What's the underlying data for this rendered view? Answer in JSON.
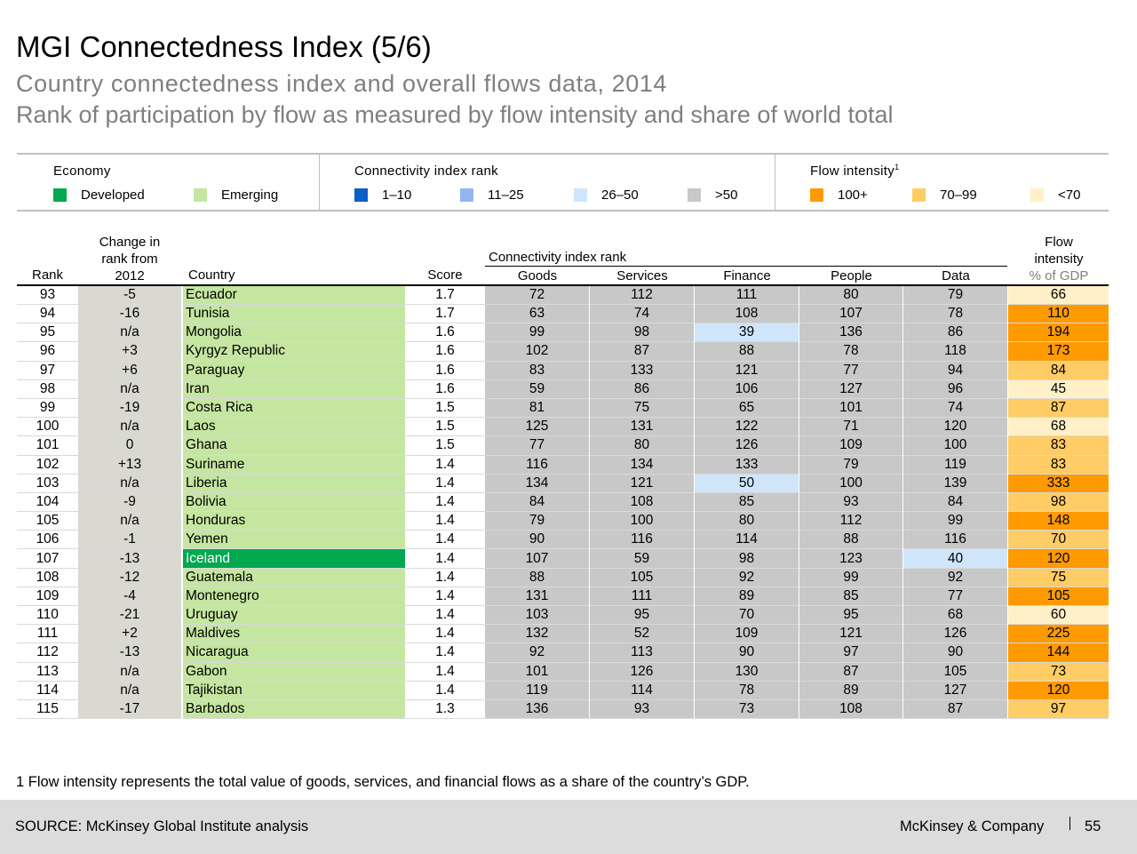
{
  "title": "MGI Connectedness Index (5/6)",
  "subtitle": "Country connectedness index and overall flows data, 2014",
  "subtitle2": "Rank of participation by flow as measured by flow intensity and share of world total",
  "legend": {
    "economy": {
      "title": "Economy",
      "items": [
        {
          "label": "Developed",
          "color": "#00a850"
        },
        {
          "label": "Emerging",
          "color": "#c5e6a1"
        }
      ]
    },
    "connectivity": {
      "title": "Connectivity index rank",
      "items": [
        {
          "label": "1–10",
          "color": "#0b5fc9"
        },
        {
          "label": "11–25",
          "color": "#92b6f2"
        },
        {
          "label": "26–50",
          "color": "#cfe5fa"
        },
        {
          "label": ">50",
          "color": "#c8c8c8"
        }
      ]
    },
    "flow": {
      "title": "Flow intensity",
      "footnote_marker": "1",
      "items": [
        {
          "label": "100+",
          "color": "#ff9a00"
        },
        {
          "label": "70–99",
          "color": "#ffcc66"
        },
        {
          "label": "<70",
          "color": "#fff0c8"
        }
      ]
    }
  },
  "table": {
    "headers": {
      "rank": "Rank",
      "change_l1": "Change in",
      "change_l2": "rank from",
      "change_l3": "2012",
      "country": "Country",
      "score": "Score",
      "group": "Connectivity index rank",
      "goods": "Goods",
      "services": "Services",
      "finance": "Finance",
      "people": "People",
      "data": "Data",
      "flow_l1": "Flow",
      "flow_l2": "intensity",
      "flow_l3": "% of GDP"
    },
    "rows": [
      {
        "rank": "93",
        "change": "-5",
        "country": "Ecuador",
        "economy": "emerging",
        "score": "1.7",
        "goods": "72",
        "services": "112",
        "finance": "111",
        "people": "80",
        "data": "79",
        "flow": "66"
      },
      {
        "rank": "94",
        "change": "-16",
        "country": "Tunisia",
        "economy": "emerging",
        "score": "1.7",
        "goods": "63",
        "services": "74",
        "finance": "108",
        "people": "107",
        "data": "78",
        "flow": "110"
      },
      {
        "rank": "95",
        "change": "n/a",
        "country": "Mongolia",
        "economy": "emerging",
        "score": "1.6",
        "goods": "99",
        "services": "98",
        "finance": "39",
        "people": "136",
        "data": "86",
        "flow": "194"
      },
      {
        "rank": "96",
        "change": "+3",
        "country": "Kyrgyz Republic",
        "economy": "emerging",
        "score": "1.6",
        "goods": "102",
        "services": "87",
        "finance": "88",
        "people": "78",
        "data": "118",
        "flow": "173"
      },
      {
        "rank": "97",
        "change": "+6",
        "country": "Paraguay",
        "economy": "emerging",
        "score": "1.6",
        "goods": "83",
        "services": "133",
        "finance": "121",
        "people": "77",
        "data": "94",
        "flow": "84"
      },
      {
        "rank": "98",
        "change": "n/a",
        "country": "Iran",
        "economy": "emerging",
        "score": "1.6",
        "goods": "59",
        "services": "86",
        "finance": "106",
        "people": "127",
        "data": "96",
        "flow": "45"
      },
      {
        "rank": "99",
        "change": "-19",
        "country": "Costa Rica",
        "economy": "emerging",
        "score": "1.5",
        "goods": "81",
        "services": "75",
        "finance": "65",
        "people": "101",
        "data": "74",
        "flow": "87"
      },
      {
        "rank": "100",
        "change": "n/a",
        "country": "Laos",
        "economy": "emerging",
        "score": "1.5",
        "goods": "125",
        "services": "131",
        "finance": "122",
        "people": "71",
        "data": "120",
        "flow": "68"
      },
      {
        "rank": "101",
        "change": "0",
        "country": "Ghana",
        "economy": "emerging",
        "score": "1.5",
        "goods": "77",
        "services": "80",
        "finance": "126",
        "people": "109",
        "data": "100",
        "flow": "83"
      },
      {
        "rank": "102",
        "change": "+13",
        "country": "Suriname",
        "economy": "emerging",
        "score": "1.4",
        "goods": "116",
        "services": "134",
        "finance": "133",
        "people": "79",
        "data": "119",
        "flow": "83"
      },
      {
        "rank": "103",
        "change": "n/a",
        "country": "Liberia",
        "economy": "emerging",
        "score": "1.4",
        "goods": "134",
        "services": "121",
        "finance": "50",
        "people": "100",
        "data": "139",
        "flow": "333"
      },
      {
        "rank": "104",
        "change": "-9",
        "country": "Bolivia",
        "economy": "emerging",
        "score": "1.4",
        "goods": "84",
        "services": "108",
        "finance": "85",
        "people": "93",
        "data": "84",
        "flow": "98"
      },
      {
        "rank": "105",
        "change": "n/a",
        "country": "Honduras",
        "economy": "emerging",
        "score": "1.4",
        "goods": "79",
        "services": "100",
        "finance": "80",
        "people": "112",
        "data": "99",
        "flow": "148"
      },
      {
        "rank": "106",
        "change": "-1",
        "country": "Yemen",
        "economy": "emerging",
        "score": "1.4",
        "goods": "90",
        "services": "116",
        "finance": "114",
        "people": "88",
        "data": "116",
        "flow": "70"
      },
      {
        "rank": "107",
        "change": "-13",
        "country": "Iceland",
        "economy": "developed",
        "score": "1.4",
        "goods": "107",
        "services": "59",
        "finance": "98",
        "people": "123",
        "data": "40",
        "flow": "120"
      },
      {
        "rank": "108",
        "change": "-12",
        "country": "Guatemala",
        "economy": "emerging",
        "score": "1.4",
        "goods": "88",
        "services": "105",
        "finance": "92",
        "people": "99",
        "data": "92",
        "flow": "75"
      },
      {
        "rank": "109",
        "change": "-4",
        "country": "Montenegro",
        "economy": "emerging",
        "score": "1.4",
        "goods": "131",
        "services": "111",
        "finance": "89",
        "people": "85",
        "data": "77",
        "flow": "105"
      },
      {
        "rank": "110",
        "change": "-21",
        "country": "Uruguay",
        "economy": "emerging",
        "score": "1.4",
        "goods": "103",
        "services": "95",
        "finance": "70",
        "people": "95",
        "data": "68",
        "flow": "60"
      },
      {
        "rank": "111",
        "change": "+2",
        "country": "Maldives",
        "economy": "emerging",
        "score": "1.4",
        "goods": "132",
        "services": "52",
        "finance": "109",
        "people": "121",
        "data": "126",
        "flow": "225"
      },
      {
        "rank": "112",
        "change": "-13",
        "country": "Nicaragua",
        "economy": "emerging",
        "score": "1.4",
        "goods": "92",
        "services": "113",
        "finance": "90",
        "people": "97",
        "data": "90",
        "flow": "144"
      },
      {
        "rank": "113",
        "change": "n/a",
        "country": "Gabon",
        "economy": "emerging",
        "score": "1.4",
        "goods": "101",
        "services": "126",
        "finance": "130",
        "people": "87",
        "data": "105",
        "flow": "73"
      },
      {
        "rank": "114",
        "change": "n/a",
        "country": "Tajikistan",
        "economy": "emerging",
        "score": "1.4",
        "goods": "119",
        "services": "114",
        "finance": "78",
        "people": "89",
        "data": "127",
        "flow": "120"
      },
      {
        "rank": "115",
        "change": "-17",
        "country": "Barbados",
        "economy": "emerging",
        "score": "1.3",
        "goods": "136",
        "services": "93",
        "finance": "73",
        "people": "108",
        "data": "87",
        "flow": "97"
      }
    ]
  },
  "footnote": "1 Flow intensity represents the total value of goods, services, and financial flows as a share of the country’s GDP.",
  "footer": {
    "source": "SOURCE: McKinsey Global Institute analysis",
    "brand": "McKinsey & Company",
    "page": "55"
  }
}
